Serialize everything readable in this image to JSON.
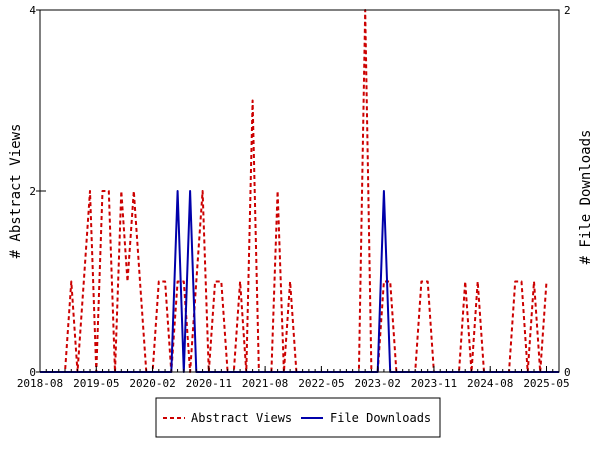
{
  "chart_data": {
    "type": "line",
    "title": "",
    "xlabel": "",
    "ylabel": "# Abstract Views",
    "y2label": "# File Downloads",
    "x_ticks": [
      "2018-08",
      "2019-05",
      "2020-02",
      "2020-11",
      "2021-08",
      "2022-05",
      "2023-02",
      "2023-11",
      "2024-08",
      "2025-05"
    ],
    "x_range": [
      "2018-08",
      "2025-07"
    ],
    "ylim": [
      0,
      4
    ],
    "y_ticks": [
      "0",
      "2",
      "4"
    ],
    "y2lim": [
      0,
      2
    ],
    "y2_ticks": [
      "0",
      "2"
    ],
    "grid": false,
    "legend_position": "bottom",
    "series": [
      {
        "name": "Abstract Views",
        "axis": "left",
        "color": "#cc0000",
        "style": "dashed",
        "points": [
          [
            "2018-08",
            0
          ],
          [
            "2018-09",
            0
          ],
          [
            "2018-10",
            0
          ],
          [
            "2018-11",
            0
          ],
          [
            "2018-12",
            0
          ],
          [
            "2019-01",
            1
          ],
          [
            "2019-02",
            0
          ],
          [
            "2019-03",
            1
          ],
          [
            "2019-04",
            2
          ],
          [
            "2019-05",
            0
          ],
          [
            "2019-06",
            2
          ],
          [
            "2019-07",
            2
          ],
          [
            "2019-08",
            0
          ],
          [
            "2019-09",
            2
          ],
          [
            "2019-10",
            1
          ],
          [
            "2019-11",
            2
          ],
          [
            "2019-12",
            1
          ],
          [
            "2020-01",
            0
          ],
          [
            "2020-02",
            0
          ],
          [
            "2020-03",
            1
          ],
          [
            "2020-04",
            1
          ],
          [
            "2020-05",
            0
          ],
          [
            "2020-06",
            1
          ],
          [
            "2020-07",
            1
          ],
          [
            "2020-08",
            0
          ],
          [
            "2020-09",
            1
          ],
          [
            "2020-10",
            2
          ],
          [
            "2020-11",
            0
          ],
          [
            "2020-12",
            1
          ],
          [
            "2021-01",
            1
          ],
          [
            "2021-02",
            0
          ],
          [
            "2021-03",
            0
          ],
          [
            "2021-04",
            1
          ],
          [
            "2021-05",
            0
          ],
          [
            "2021-06",
            3
          ],
          [
            "2021-07",
            0
          ],
          [
            "2021-08",
            0
          ],
          [
            "2021-09",
            0
          ],
          [
            "2021-10",
            2
          ],
          [
            "2021-11",
            0
          ],
          [
            "2021-12",
            1
          ],
          [
            "2022-01",
            0
          ],
          [
            "2022-02",
            0
          ],
          [
            "2022-03",
            0
          ],
          [
            "2022-04",
            0
          ],
          [
            "2022-05",
            0
          ],
          [
            "2022-06",
            0
          ],
          [
            "2022-07",
            0
          ],
          [
            "2022-08",
            0
          ],
          [
            "2022-09",
            0
          ],
          [
            "2022-10",
            0
          ],
          [
            "2022-11",
            0
          ],
          [
            "2022-12",
            4
          ],
          [
            "2023-01",
            0
          ],
          [
            "2023-02",
            0
          ],
          [
            "2023-03",
            1
          ],
          [
            "2023-04",
            1
          ],
          [
            "2023-05",
            0
          ],
          [
            "2023-06",
            0
          ],
          [
            "2023-07",
            0
          ],
          [
            "2023-08",
            0
          ],
          [
            "2023-09",
            1
          ],
          [
            "2023-10",
            1
          ],
          [
            "2023-11",
            0
          ],
          [
            "2023-12",
            0
          ],
          [
            "2024-01",
            0
          ],
          [
            "2024-02",
            0
          ],
          [
            "2024-03",
            0
          ],
          [
            "2024-04",
            1
          ],
          [
            "2024-05",
            0
          ],
          [
            "2024-06",
            1
          ],
          [
            "2024-07",
            0
          ],
          [
            "2024-08",
            0
          ],
          [
            "2024-09",
            0
          ],
          [
            "2024-10",
            0
          ],
          [
            "2024-11",
            0
          ],
          [
            "2024-12",
            1
          ],
          [
            "2025-01",
            1
          ],
          [
            "2025-02",
            0
          ],
          [
            "2025-03",
            1
          ],
          [
            "2025-04",
            0
          ],
          [
            "2025-05",
            1
          ]
        ]
      },
      {
        "name": "File Downloads",
        "axis": "right",
        "color": "#0000aa",
        "style": "solid",
        "points": [
          [
            "2018-08",
            0
          ],
          [
            "2020-04",
            0
          ],
          [
            "2020-05",
            0
          ],
          [
            "2020-06",
            1
          ],
          [
            "2020-07",
            0
          ],
          [
            "2020-08",
            1
          ],
          [
            "2020-09",
            0
          ],
          [
            "2020-10",
            0
          ],
          [
            "2023-02",
            0
          ],
          [
            "2023-03",
            1
          ],
          [
            "2023-04",
            0
          ],
          [
            "2025-07",
            0
          ]
        ]
      }
    ]
  }
}
